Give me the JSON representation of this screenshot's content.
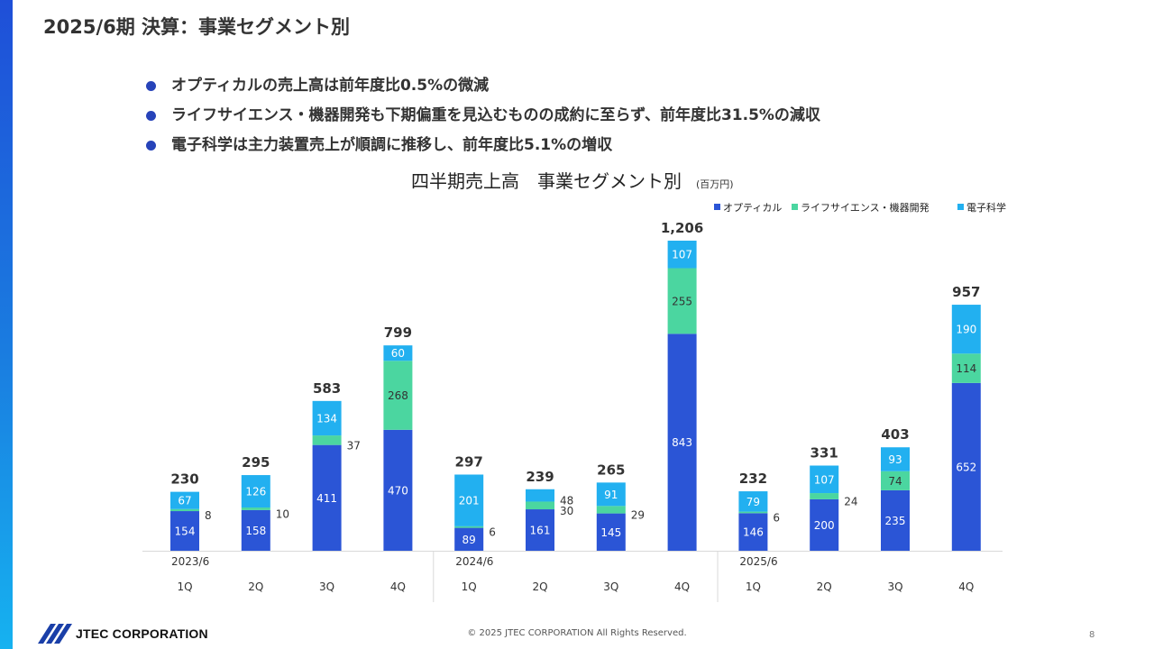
{
  "slide": {
    "title": "2025/6期 決算：事業セグメント別",
    "bullets": [
      "オプティカルの売上高は前年度比0.5%の微減",
      "ライフサイエンス・機器開発も下期偏重を見込むものの成約に至らず、前年度比31.5%の減収",
      "電子科学は主力装置売上が順調に推移し、前年度比5.1%の増収"
    ],
    "bullet_color": "#2743b9",
    "footer": {
      "company": "JTEC CORPORATION",
      "copyright": "© 2025 JTEC CORPORATION All Rights Reserved.",
      "page": "8"
    }
  },
  "chart_data": {
    "type": "bar",
    "stacked": true,
    "title": "四半期売上高　事業セグメント別",
    "unit_label": "(百万円)",
    "legend_position": "top-right",
    "grid": false,
    "categories": [
      "1Q",
      "2Q",
      "3Q",
      "4Q",
      "1Q",
      "2Q",
      "3Q",
      "4Q",
      "1Q",
      "2Q",
      "3Q",
      "4Q"
    ],
    "groups": [
      {
        "label": "2023/6",
        "start": 0,
        "end": 3
      },
      {
        "label": "2024/6",
        "start": 4,
        "end": 7
      },
      {
        "label": "2025/6",
        "start": 8,
        "end": 11
      }
    ],
    "series": [
      {
        "name": "オプティカル",
        "color": "#2b55d6",
        "values": [
          154,
          158,
          411,
          470,
          89,
          161,
          145,
          843,
          146,
          200,
          235,
          652
        ]
      },
      {
        "name": "ライフサイエンス・機器開発",
        "color": "#4bd6a0",
        "values": [
          8,
          10,
          37,
          268,
          6,
          30,
          29,
          255,
          6,
          24,
          74,
          114
        ]
      },
      {
        "name": "電子科学",
        "color": "#22b0f0",
        "values": [
          67,
          126,
          134,
          60,
          201,
          48,
          91,
          107,
          79,
          107,
          93,
          190
        ]
      }
    ],
    "totals": [
      "230",
      "295",
      "583",
      "799",
      "297",
      "239",
      "265",
      "1,206",
      "232",
      "331",
      "403",
      "957"
    ],
    "ylim": [
      0,
      1300
    ]
  }
}
